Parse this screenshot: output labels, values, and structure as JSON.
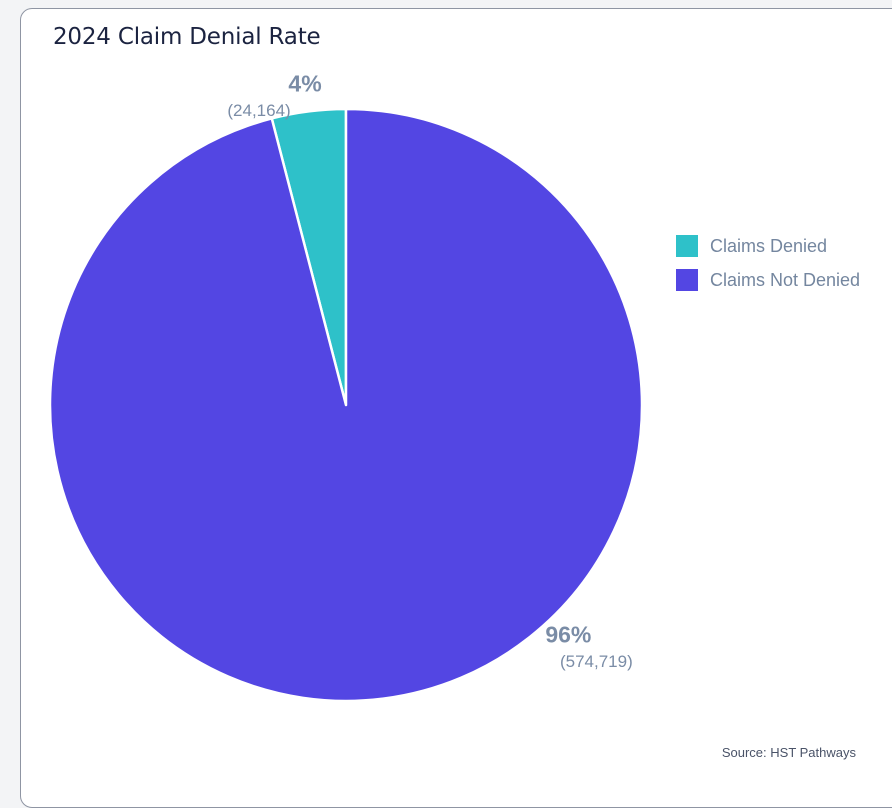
{
  "chart_data": {
    "type": "pie",
    "title": "2024 Claim Denial Rate",
    "slices": [
      {
        "label": "Claims Denied",
        "value": 24164,
        "percent_label": "4%",
        "count_label": "(24,164)",
        "color": "#2ec1c9"
      },
      {
        "label": "Claims Not Denied",
        "value": 574719,
        "percent_label": "96%",
        "count_label": "(574,719)",
        "color": "#5346e3"
      }
    ],
    "legend_position": "right",
    "source": "Source: HST Pathways"
  }
}
